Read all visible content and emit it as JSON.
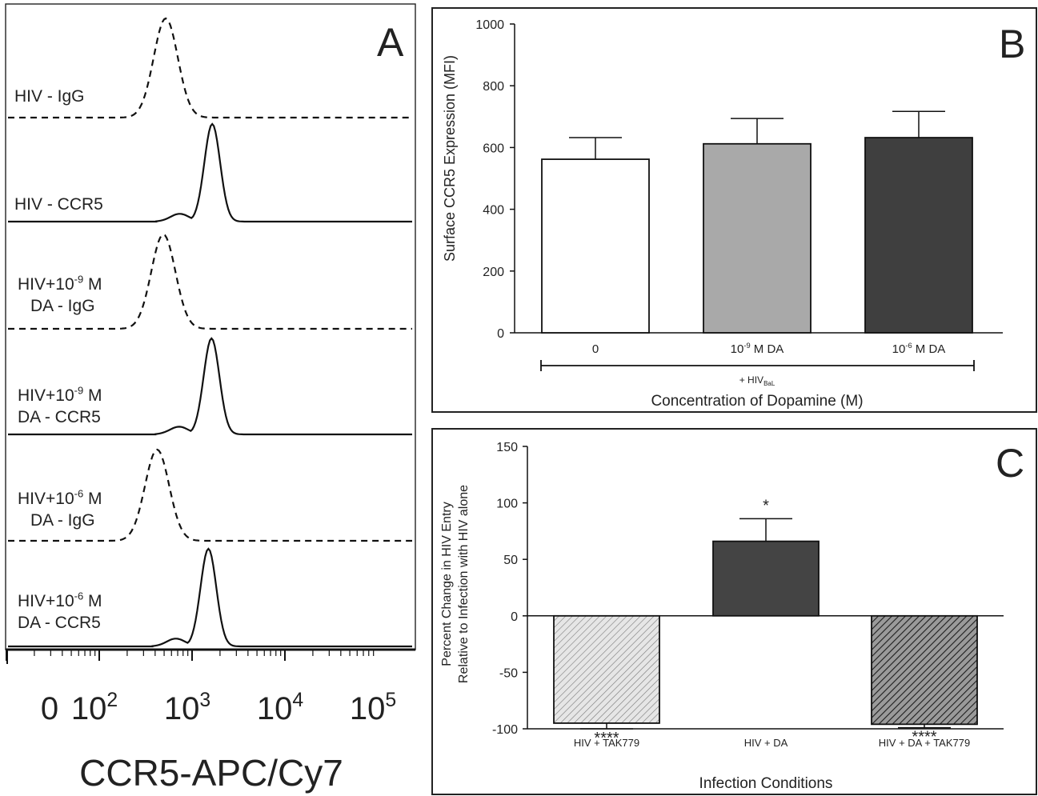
{
  "chart_data": [
    {
      "panel": "A",
      "type": "area",
      "panel_letter": "A",
      "xlabel": "CCR5-APC/Cy7",
      "x_scale": "biexponential (log)",
      "x_ticks": [
        {
          "label": "0",
          "value": 0
        },
        {
          "label": "10",
          "sup": "2",
          "value": 100
        },
        {
          "label": "10",
          "sup": "3",
          "value": 1000
        },
        {
          "label": "10",
          "sup": "4",
          "value": 10000
        },
        {
          "label": "10",
          "sup": "5",
          "value": 100000
        }
      ],
      "tracks": [
        {
          "label_lines": [
            {
              "base": "HIV - IgG",
              "sup": "",
              "tail": ""
            }
          ],
          "style": "dashed",
          "peak_x": 520
        },
        {
          "label_lines": [
            {
              "base": "HIV - CCR5",
              "sup": "",
              "tail": ""
            }
          ],
          "style": "solid",
          "peak_x": 1650
        },
        {
          "label_lines": [
            {
              "base": "HIV+10",
              "sup": "-9",
              "tail": " M"
            },
            {
              "base": "DA - IgG",
              "sup": "",
              "tail": ""
            }
          ],
          "style": "dashed",
          "peak_x": 490
        },
        {
          "label_lines": [
            {
              "base": "HIV+10",
              "sup": "-9",
              "tail": " M"
            },
            {
              "base": "DA - CCR5",
              "sup": "",
              "tail": ""
            }
          ],
          "style": "solid",
          "peak_x": 1620
        },
        {
          "label_lines": [
            {
              "base": "HIV+10",
              "sup": "-6",
              "tail": " M"
            },
            {
              "base": "DA - IgG",
              "sup": "",
              "tail": ""
            }
          ],
          "style": "dashed",
          "peak_x": 420
        },
        {
          "label_lines": [
            {
              "base": "HIV+10",
              "sup": "-6",
              "tail": " M"
            },
            {
              "base": "DA - CCR5",
              "sup": "",
              "tail": ""
            }
          ],
          "style": "solid",
          "peak_x": 1500
        }
      ]
    },
    {
      "panel": "B",
      "type": "bar",
      "panel_letter": "B",
      "ylabel": "Surface CCR5 Expression (MFI)",
      "xlabel": "Concentration of Dopamine (M)",
      "bracket_label": {
        "base": "+ HIV",
        "sub": "BaL"
      },
      "ylim": [
        0,
        1000
      ],
      "yticks": [
        0,
        200,
        400,
        600,
        800,
        1000
      ],
      "categories": [
        {
          "base": "0",
          "sup": "",
          "tail": ""
        },
        {
          "base": "10",
          "sup": "-9",
          "tail": " M DA"
        },
        {
          "base": "10",
          "sup": "-6",
          "tail": " M DA"
        }
      ],
      "values": [
        562,
        612,
        632
      ],
      "errors": [
        70,
        82,
        85
      ],
      "colors": [
        "#ffffff",
        "#a9a9a9",
        "#3f3f3f"
      ]
    },
    {
      "panel": "C",
      "type": "bar",
      "panel_letter": "C",
      "ylabel_lines": [
        "Percent Change in HIV Entry",
        "Relative to Infection with HIV alone"
      ],
      "xlabel": "Infection Conditions",
      "ylim": [
        -100,
        150
      ],
      "yticks": [
        -100,
        -50,
        0,
        50,
        100,
        150
      ],
      "categories": [
        "HIV + TAK779",
        "HIV + DA",
        "HIV + DA + TAK779"
      ],
      "values": [
        -95,
        66,
        -96
      ],
      "errors": [
        5,
        20,
        3
      ],
      "significance": [
        "****",
        "*",
        "****"
      ],
      "fills": [
        "hatch-light",
        "#444444",
        "hatch-dark"
      ]
    }
  ]
}
